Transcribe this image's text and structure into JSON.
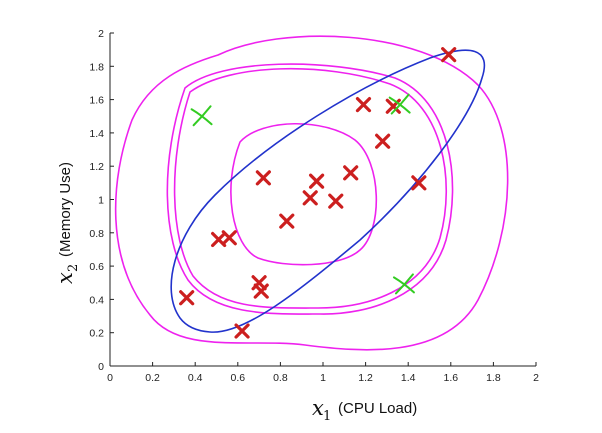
{
  "chart_data": {
    "type": "scatter",
    "title": "",
    "xlabel": {
      "var": "x",
      "sub": "1",
      "text": "(CPU Load)"
    },
    "ylabel": {
      "var": "x",
      "sub": "2",
      "text": "(Memory Use)"
    },
    "xlim": [
      0,
      2
    ],
    "ylim": [
      0,
      2
    ],
    "xticks": [
      "0",
      "0.2",
      "0.4",
      "0.6",
      "0.8",
      "1",
      "1.2",
      "1.4",
      "1.6",
      "1.8",
      "2"
    ],
    "yticks": [
      "0",
      "0.2",
      "0.4",
      "0.6",
      "0.8",
      "1",
      "1.2",
      "1.4",
      "1.6",
      "1.8",
      "2"
    ],
    "grid": false,
    "marker_color": "#cc1f1f",
    "series": [
      {
        "marker": "x",
        "color": "#cc1f1f",
        "points": [
          {
            "x": 0.36,
            "y": 0.41
          },
          {
            "x": 0.51,
            "y": 0.76
          },
          {
            "x": 0.56,
            "y": 0.77
          },
          {
            "x": 0.62,
            "y": 0.21
          },
          {
            "x": 0.7,
            "y": 0.5
          },
          {
            "x": 0.71,
            "y": 0.45
          },
          {
            "x": 0.72,
            "y": 1.13
          },
          {
            "x": 0.83,
            "y": 0.87
          },
          {
            "x": 0.94,
            "y": 1.01
          },
          {
            "x": 0.97,
            "y": 1.11
          },
          {
            "x": 1.06,
            "y": 0.99
          },
          {
            "x": 1.13,
            "y": 1.16
          },
          {
            "x": 1.19,
            "y": 1.57
          },
          {
            "x": 1.28,
            "y": 1.35
          },
          {
            "x": 1.33,
            "y": 1.56
          },
          {
            "x": 1.45,
            "y": 1.1
          },
          {
            "x": 1.59,
            "y": 1.87
          }
        ]
      },
      {
        "marker": "hand-drawn-x",
        "color": "#33cc22",
        "points": [
          {
            "x": 0.43,
            "y": 1.5
          },
          {
            "x": 1.36,
            "y": 1.57
          },
          {
            "x": 1.38,
            "y": 0.49
          }
        ]
      }
    ],
    "annotations": {
      "contour_color": "#ee22ee",
      "ellipse_color": "#2233cc"
    }
  }
}
